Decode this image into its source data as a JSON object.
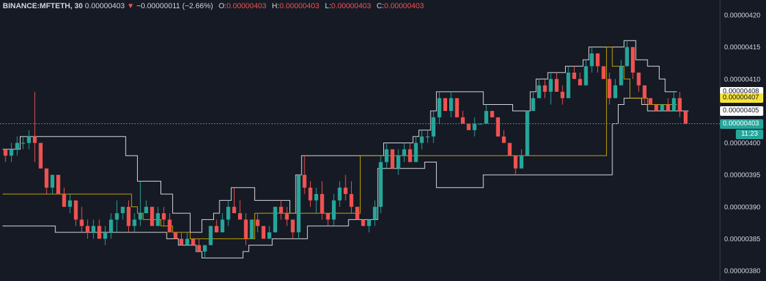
{
  "legend": {
    "symbol": "BINANCE:MFTETH, 30",
    "last": "0.00000403",
    "arrow": "▼",
    "change": "−0.00000011 (−2.66%)",
    "o_label": "O:",
    "o_value": "0.00000403",
    "h_label": "H:",
    "h_value": "0.00000403",
    "l_label": "L:",
    "l_value": "0.00000403",
    "c_label": "C:",
    "c_value": "0.00000403"
  },
  "price_badges": [
    {
      "text": "0.00000408",
      "value": 4.08e-06,
      "bg": "#ffffff",
      "fg": "#131722"
    },
    {
      "text": "0.00000407",
      "value": 4.07e-06,
      "bg": "#f5e33b",
      "fg": "#131722"
    },
    {
      "text": "0.00000405",
      "value": 4.05e-06,
      "bg": "#ffffff",
      "fg": "#131722"
    },
    {
      "text": "0.00000403",
      "value": 4.03e-06,
      "bg": "#26a69a",
      "fg": "#ffffff"
    }
  ],
  "countdown": {
    "text": "11:23",
    "bg": "#26a69a",
    "fg": "#ffffff"
  },
  "colors": {
    "up": "#26a69a",
    "down": "#ef5350",
    "channel": "#e0e0e0",
    "midline": "#c9a800",
    "last_line": "#26a69a",
    "axis_bg": "#161a25",
    "plot_bg": "#161a25"
  },
  "chart_data": {
    "type": "candlestick",
    "title": "BINANCE:MFTETH, 30",
    "ylim": [
      3.795e-06,
      4.205e-06
    ],
    "y_ticks": [
      "0.00000420",
      "0.00000415",
      "0.00000410",
      "0.00000405",
      "0.00000400",
      "0.00000395",
      "0.00000390",
      "0.00000385",
      "0.00000380"
    ],
    "y_tick_values": [
      4.2e-06,
      4.15e-06,
      4.1e-06,
      4.05e-06,
      4e-06,
      3.95e-06,
      3.9e-06,
      3.85e-06,
      3.8e-06
    ],
    "last_price": 4.03e-06,
    "grid": false,
    "candles_ohlc": [
      [
        3.99,
        3.99,
        3.97,
        3.98
      ],
      [
        3.98,
        4.0,
        3.97,
        3.99
      ],
      [
        3.99,
        4.01,
        3.98,
        4.0
      ],
      [
        4.0,
        4.01,
        3.99,
        4.0
      ],
      [
        4.0,
        4.02,
        3.99,
        4.01
      ],
      [
        4.01,
        4.08,
        3.97,
        4.0
      ],
      [
        4.0,
        4.0,
        3.96,
        3.96
      ],
      [
        3.96,
        3.96,
        3.92,
        3.93
      ],
      [
        3.93,
        3.95,
        3.92,
        3.95
      ],
      [
        3.95,
        3.95,
        3.92,
        3.92
      ],
      [
        3.92,
        3.93,
        3.9,
        3.9
      ],
      [
        3.9,
        3.92,
        3.89,
        3.91
      ],
      [
        3.91,
        3.91,
        3.87,
        3.88
      ],
      [
        3.88,
        3.9,
        3.86,
        3.87
      ],
      [
        3.87,
        3.88,
        3.85,
        3.86
      ],
      [
        3.86,
        3.88,
        3.85,
        3.87
      ],
      [
        3.87,
        3.88,
        3.85,
        3.85
      ],
      [
        3.85,
        3.87,
        3.84,
        3.86
      ],
      [
        3.86,
        3.89,
        3.85,
        3.88
      ],
      [
        3.88,
        3.91,
        3.86,
        3.89
      ],
      [
        3.89,
        3.9,
        3.88,
        3.9
      ],
      [
        3.9,
        3.91,
        3.86,
        3.87
      ],
      [
        3.87,
        3.89,
        3.86,
        3.88
      ],
      [
        3.88,
        3.94,
        3.87,
        3.89
      ],
      [
        3.89,
        3.91,
        3.89,
        3.9
      ],
      [
        3.9,
        3.9,
        3.87,
        3.87
      ],
      [
        3.87,
        3.9,
        3.87,
        3.89
      ],
      [
        3.89,
        3.9,
        3.87,
        3.88
      ],
      [
        3.88,
        3.89,
        3.86,
        3.86
      ],
      [
        3.86,
        3.86,
        3.85,
        3.85
      ],
      [
        3.85,
        3.86,
        3.84,
        3.84
      ],
      [
        3.84,
        3.86,
        3.84,
        3.85
      ],
      [
        3.85,
        3.85,
        3.84,
        3.84
      ],
      [
        3.84,
        3.85,
        3.83,
        3.83
      ],
      [
        3.83,
        3.84,
        3.82,
        3.84
      ],
      [
        3.84,
        3.87,
        3.84,
        3.87
      ],
      [
        3.87,
        3.88,
        3.86,
        3.86
      ],
      [
        3.86,
        3.89,
        3.86,
        3.88
      ],
      [
        3.88,
        3.91,
        3.87,
        3.9
      ],
      [
        3.9,
        3.93,
        3.89,
        3.89
      ],
      [
        3.89,
        3.91,
        3.88,
        3.88
      ],
      [
        3.88,
        3.89,
        3.84,
        3.85
      ],
      [
        3.85,
        3.88,
        3.85,
        3.88
      ],
      [
        3.88,
        3.89,
        3.86,
        3.87
      ],
      [
        3.87,
        3.87,
        3.85,
        3.85
      ],
      [
        3.85,
        3.87,
        3.85,
        3.86
      ],
      [
        3.86,
        3.9,
        3.86,
        3.9
      ],
      [
        3.9,
        3.91,
        3.88,
        3.89
      ],
      [
        3.89,
        3.9,
        3.87,
        3.88
      ],
      [
        3.88,
        3.88,
        3.85,
        3.86
      ],
      [
        3.86,
        3.95,
        3.85,
        3.95
      ],
      [
        3.95,
        3.98,
        3.92,
        3.93
      ],
      [
        3.93,
        3.94,
        3.9,
        3.91
      ],
      [
        3.91,
        3.93,
        3.89,
        3.92
      ],
      [
        3.92,
        3.94,
        3.88,
        3.89
      ],
      [
        3.89,
        3.89,
        3.87,
        3.88
      ],
      [
        3.88,
        3.92,
        3.87,
        3.91
      ],
      [
        3.91,
        3.94,
        3.9,
        3.93
      ],
      [
        3.93,
        3.95,
        3.91,
        3.92
      ],
      [
        3.92,
        3.94,
        3.89,
        3.9
      ],
      [
        3.9,
        3.9,
        3.88,
        3.88
      ],
      [
        3.88,
        3.88,
        3.87,
        3.87
      ],
      [
        3.87,
        3.88,
        3.86,
        3.88
      ],
      [
        3.88,
        3.91,
        3.87,
        3.9
      ],
      [
        3.9,
        3.98,
        3.89,
        3.97
      ],
      [
        3.97,
        4.0,
        3.96,
        3.99
      ],
      [
        3.99,
        3.99,
        3.96,
        3.96
      ],
      [
        3.96,
        3.99,
        3.95,
        3.98
      ],
      [
        3.98,
        4.0,
        3.97,
        3.99
      ],
      [
        3.99,
        4.0,
        3.97,
        3.97
      ],
      [
        3.97,
        4.01,
        3.97,
        4.0
      ],
      [
        4.0,
        4.02,
        3.99,
        4.01
      ],
      [
        4.01,
        4.02,
        4.0,
        4.01
      ],
      [
        4.01,
        4.05,
        4.0,
        4.04
      ],
      [
        4.04,
        4.08,
        4.03,
        4.07
      ],
      [
        4.07,
        4.07,
        4.05,
        4.05
      ],
      [
        4.05,
        4.08,
        4.04,
        4.07
      ],
      [
        4.07,
        4.07,
        4.04,
        4.04
      ],
      [
        4.04,
        4.05,
        4.03,
        4.03
      ],
      [
        4.03,
        4.03,
        4.02,
        4.02
      ],
      [
        4.02,
        4.04,
        4.01,
        4.03
      ],
      [
        4.03,
        4.03,
        4.03,
        4.03
      ],
      [
        4.03,
        4.06,
        4.03,
        4.05
      ],
      [
        4.05,
        4.05,
        4.04,
        4.04
      ],
      [
        4.04,
        4.04,
        4.01,
        4.01
      ],
      [
        4.01,
        4.02,
        4.0,
        4.0
      ],
      [
        4.0,
        4.0,
        3.98,
        3.98
      ],
      [
        3.98,
        3.98,
        3.95,
        3.96
      ],
      [
        3.96,
        3.99,
        3.96,
        3.98
      ],
      [
        3.98,
        4.05,
        3.98,
        4.05
      ],
      [
        4.05,
        4.08,
        4.05,
        4.07
      ],
      [
        4.07,
        4.1,
        4.07,
        4.09
      ],
      [
        4.09,
        4.1,
        4.07,
        4.08
      ],
      [
        4.08,
        4.11,
        4.06,
        4.1
      ],
      [
        4.1,
        4.11,
        4.08,
        4.08
      ],
      [
        4.08,
        4.09,
        4.06,
        4.07
      ],
      [
        4.07,
        4.12,
        4.07,
        4.11
      ],
      [
        4.11,
        4.12,
        4.1,
        4.1
      ],
      [
        4.1,
        4.11,
        4.09,
        4.09
      ],
      [
        4.09,
        4.13,
        4.09,
        4.12
      ],
      [
        4.12,
        4.15,
        4.11,
        4.14
      ],
      [
        4.14,
        4.14,
        4.11,
        4.12
      ],
      [
        4.12,
        4.12,
        4.1,
        4.1
      ],
      [
        4.1,
        4.11,
        4.06,
        4.07
      ],
      [
        4.07,
        4.1,
        4.07,
        4.09
      ],
      [
        4.09,
        4.13,
        4.09,
        4.12
      ],
      [
        4.12,
        4.16,
        4.12,
        4.15
      ],
      [
        4.15,
        4.15,
        4.1,
        4.11
      ],
      [
        4.11,
        4.11,
        4.08,
        4.09
      ],
      [
        4.09,
        4.09,
        4.06,
        4.07
      ],
      [
        4.07,
        4.07,
        4.06,
        4.06
      ],
      [
        4.06,
        4.06,
        4.05,
        4.05
      ],
      [
        4.05,
        4.06,
        4.05,
        4.06
      ],
      [
        4.06,
        4.07,
        4.05,
        4.05
      ],
      [
        4.05,
        4.08,
        4.05,
        4.07
      ],
      [
        4.07,
        4.08,
        4.04,
        4.05
      ],
      [
        4.05,
        4.05,
        4.03,
        4.03
      ]
    ],
    "channel_upper": [
      3.99,
      3.99,
      3.99,
      4.01,
      4.01,
      4.01,
      4.01,
      4.01,
      4.01,
      4.01,
      4.01,
      4.01,
      4.01,
      4.01,
      4.01,
      4.01,
      4.01,
      4.01,
      4.01,
      4.01,
      4.01,
      3.98,
      3.98,
      3.94,
      3.94,
      3.94,
      3.94,
      3.92,
      3.92,
      3.89,
      3.89,
      3.89,
      3.86,
      3.86,
      3.88,
      3.88,
      3.89,
      3.91,
      3.91,
      3.93,
      3.93,
      3.93,
      3.93,
      3.91,
      3.91,
      3.91,
      3.91,
      3.91,
      3.91,
      3.89,
      3.95,
      3.98,
      3.98,
      3.98,
      3.98,
      3.98,
      3.98,
      3.98,
      3.98,
      3.98,
      3.98,
      3.98,
      3.98,
      3.98,
      3.98,
      4.0,
      4.0,
      4.0,
      4.0,
      4.0,
      4.01,
      4.02,
      4.02,
      4.05,
      4.08,
      4.08,
      4.08,
      4.08,
      4.08,
      4.08,
      4.08,
      4.08,
      4.06,
      4.06,
      4.06,
      4.06,
      4.06,
      4.05,
      4.05,
      4.05,
      4.08,
      4.1,
      4.1,
      4.11,
      4.11,
      4.11,
      4.12,
      4.12,
      4.12,
      4.13,
      4.15,
      4.15,
      4.15,
      4.15,
      4.15,
      4.15,
      4.16,
      4.16,
      4.13,
      4.13,
      4.12,
      4.12,
      4.1,
      4.08,
      4.08
    ],
    "channel_lower": [
      3.87,
      3.87,
      3.87,
      3.87,
      3.87,
      3.87,
      3.87,
      3.87,
      3.87,
      3.86,
      3.86,
      3.86,
      3.86,
      3.86,
      3.86,
      3.86,
      3.86,
      3.86,
      3.86,
      3.86,
      3.86,
      3.86,
      3.86,
      3.86,
      3.86,
      3.86,
      3.86,
      3.86,
      3.85,
      3.85,
      3.84,
      3.84,
      3.84,
      3.83,
      3.82,
      3.82,
      3.82,
      3.82,
      3.82,
      3.82,
      3.82,
      3.83,
      3.84,
      3.84,
      3.84,
      3.84,
      3.85,
      3.85,
      3.85,
      3.85,
      3.85,
      3.85,
      3.87,
      3.87,
      3.87,
      3.87,
      3.87,
      3.87,
      3.87,
      3.88,
      3.88,
      3.88,
      3.88,
      3.88,
      3.96,
      3.96,
      3.96,
      3.96,
      3.96,
      3.96,
      3.96,
      3.96,
      3.97,
      3.97,
      3.93,
      3.93,
      3.93,
      3.93,
      3.93,
      3.93,
      3.93,
      3.93,
      3.95,
      3.95,
      3.95,
      3.95,
      3.95,
      3.95,
      3.95,
      3.95,
      3.95,
      3.95,
      3.95,
      3.95,
      3.95,
      3.95,
      3.95,
      3.95,
      3.95,
      3.95,
      3.95,
      3.95,
      3.95,
      3.95,
      4.03,
      4.06,
      4.07,
      4.07,
      4.07,
      4.06,
      4.05,
      4.05,
      4.05,
      4.05,
      4.05,
      4.05,
      4.05
    ],
    "channel_mid": [
      3.92,
      3.92,
      3.92,
      3.92,
      3.92,
      3.92,
      3.92,
      3.92,
      3.92,
      3.92,
      3.92,
      3.92,
      3.92,
      3.92,
      3.92,
      3.92,
      3.92,
      3.92,
      3.92,
      3.92,
      3.92,
      3.92,
      3.9,
      3.89,
      3.88,
      3.88,
      3.88,
      3.87,
      3.87,
      3.86,
      3.86,
      3.86,
      3.85,
      3.85,
      3.85,
      3.85,
      3.85,
      3.85,
      3.85,
      3.85,
      3.85,
      3.85,
      3.85,
      3.89,
      3.89,
      3.89,
      3.89,
      3.89,
      3.89,
      3.89,
      3.89,
      3.89,
      3.89,
      3.89,
      3.89,
      3.89,
      3.89,
      3.89,
      3.89,
      3.89,
      3.89,
      3.98,
      3.98,
      3.98,
      3.98,
      3.98,
      3.98,
      3.98,
      3.98,
      3.98,
      3.98,
      3.98,
      3.98,
      3.98,
      3.98,
      3.98,
      3.98,
      3.98,
      3.98,
      3.98,
      3.98,
      3.98,
      3.98,
      3.98,
      3.98,
      3.98,
      3.98,
      3.98,
      3.98,
      3.98,
      3.98,
      3.98,
      3.98,
      3.98,
      3.98,
      3.98,
      3.98,
      3.98,
      3.98,
      3.98,
      3.98,
      3.98,
      3.98,
      4.15,
      4.12,
      4.12,
      4.1,
      4.07,
      4.07,
      4.07,
      4.06,
      4.06,
      4.06,
      4.06,
      4.06
    ]
  }
}
